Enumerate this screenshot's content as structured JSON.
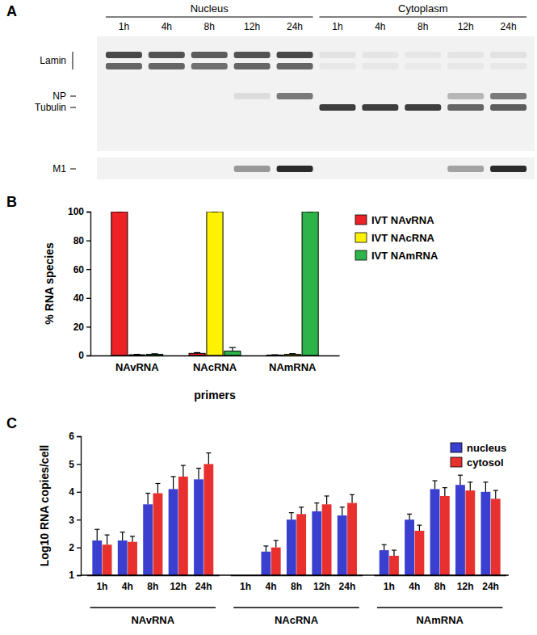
{
  "blot": {
    "panel_label": "A",
    "fractions": [
      "Nucleus",
      "Cytoplasm"
    ],
    "lanes": [
      "1h",
      "4h",
      "8h",
      "12h",
      "24h"
    ],
    "strips": [
      [
        {
          "label": "Lamin",
          "intensity": [
            [
              0.85,
              0.8,
              0.75,
              0.8,
              0.85,
              0.08,
              0.06,
              0.05,
              0.06,
              0.08
            ],
            [
              0.7,
              0.7,
              0.65,
              0.7,
              0.7,
              0.05,
              0.05,
              0.04,
              0.05,
              0.05
            ]
          ]
        },
        {
          "label": "NP",
          "intensity": [
            [
              0,
              0,
              0,
              0.1,
              0.6,
              0,
              0,
              0,
              0.3,
              0.6
            ]
          ]
        },
        {
          "label": "Tubulin",
          "intensity": [
            [
              0,
              0,
              0,
              0,
              0,
              0.9,
              0.9,
              0.9,
              0.7,
              0.75
            ]
          ]
        }
      ],
      [
        {
          "label": "M1",
          "intensity": [
            [
              0,
              0,
              0,
              0.45,
              1,
              0,
              0,
              0,
              0.4,
              1
            ]
          ]
        }
      ]
    ]
  },
  "chart_data": [
    {
      "panel_label": "B",
      "type": "bar",
      "ylabel": "% RNA species",
      "xlabel": "primers",
      "categories": [
        "NAvRNA",
        "NAcRNA",
        "NAmRNA"
      ],
      "series": [
        {
          "name": "IVT NAvRNA",
          "color": "#ec2227",
          "values": [
            100,
            1.5,
            0.3
          ],
          "errors": [
            0,
            0.5,
            0.2
          ]
        },
        {
          "name": "IVT NAcRNA",
          "color": "#fff200",
          "values": [
            0.5,
            100,
            0.8
          ],
          "errors": [
            0.3,
            0,
            0.5
          ]
        },
        {
          "name": "IVT NAmRNA",
          "color": "#2db34a",
          "values": [
            0.8,
            3,
            100
          ],
          "errors": [
            0.4,
            2.5,
            0
          ]
        }
      ],
      "ylim": [
        0,
        100
      ],
      "yticks": [
        0,
        20,
        40,
        60,
        80,
        100
      ],
      "legend": "upper right"
    },
    {
      "panel_label": "C",
      "type": "bar",
      "ylabel": "Log10 RNA copies/cell",
      "categories": [
        "1h",
        "4h",
        "8h",
        "12h",
        "24h",
        "1h",
        "4h",
        "8h",
        "12h",
        "24h",
        "1h",
        "4h",
        "8h",
        "12h",
        "24h"
      ],
      "category_groups": [
        "NAvRNA",
        "NAcRNA",
        "NAmRNA"
      ],
      "series": [
        {
          "name": "nucleus",
          "color": "#3a3fd0",
          "values": [
            2.25,
            2.25,
            3.55,
            4.1,
            4.45,
            null,
            1.85,
            3.0,
            3.3,
            3.15,
            1.9,
            3.0,
            4.1,
            4.25,
            4.0
          ],
          "errors": [
            0.4,
            0.3,
            0.4,
            0.45,
            0.4,
            null,
            0.2,
            0.25,
            0.3,
            0.3,
            0.2,
            0.2,
            0.3,
            0.35,
            0.35
          ]
        },
        {
          "name": "cytosol",
          "color": "#e8312f",
          "values": [
            2.1,
            2.2,
            3.95,
            4.55,
            5.0,
            null,
            2.0,
            3.2,
            3.55,
            3.6,
            1.7,
            2.6,
            3.85,
            4.05,
            3.75
          ],
          "errors": [
            0.35,
            0.2,
            0.35,
            0.4,
            0.4,
            null,
            0.25,
            0.25,
            0.3,
            0.3,
            0.2,
            0.2,
            0.3,
            0.3,
            0.3
          ]
        }
      ],
      "ylim": [
        1,
        6
      ],
      "yticks": [
        1,
        2,
        3,
        4,
        5,
        6
      ],
      "legend": "upper right"
    }
  ]
}
